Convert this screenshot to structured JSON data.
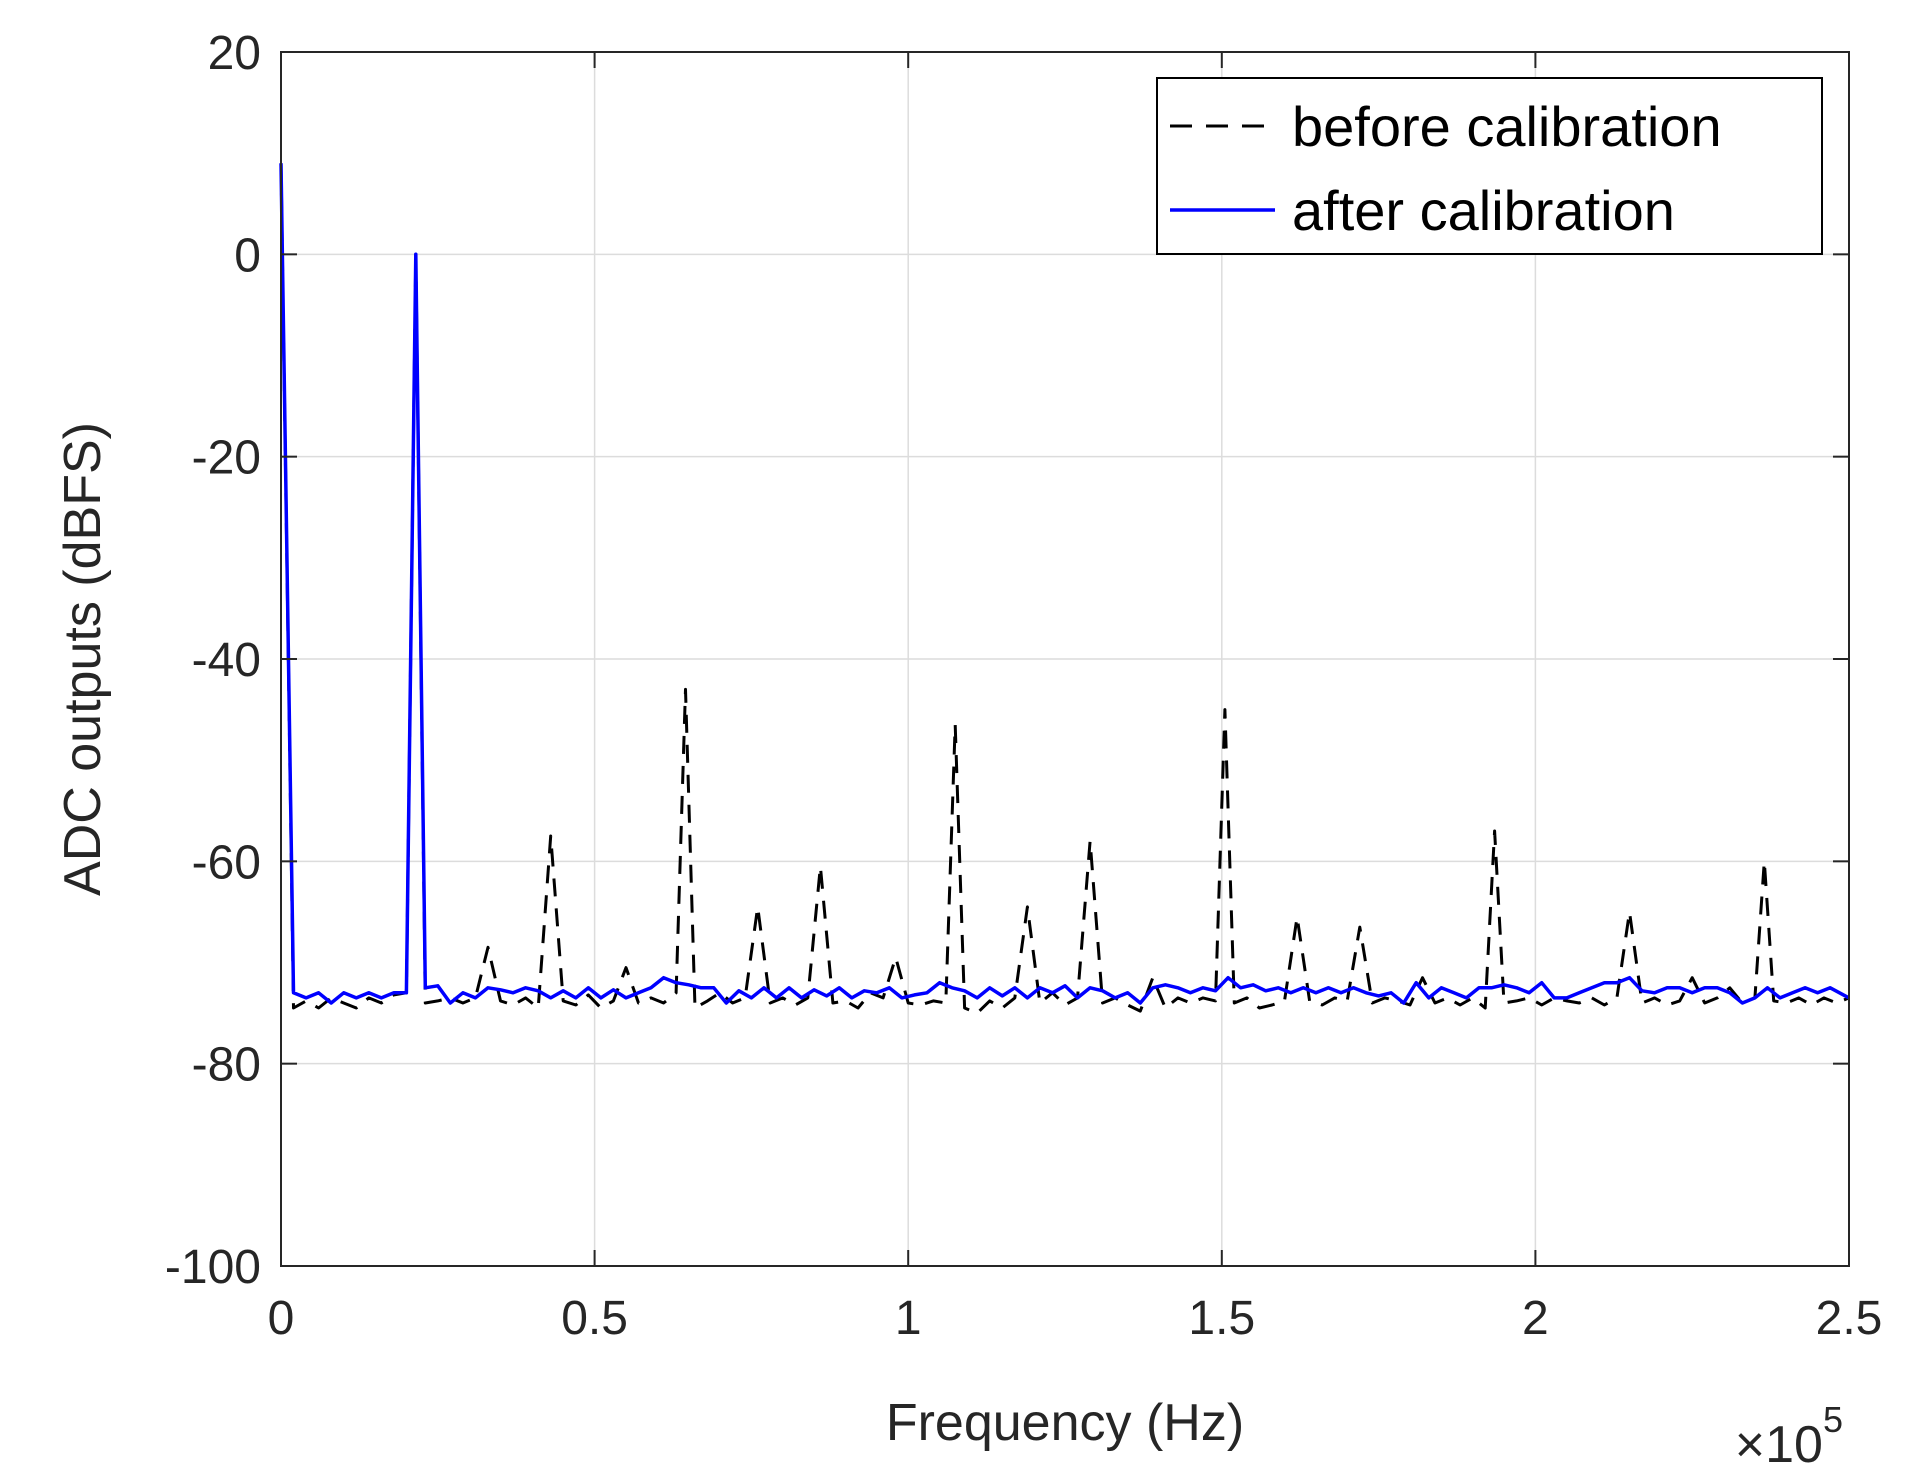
{
  "chart_data": {
    "type": "line",
    "xlabel": "Frequency (Hz)",
    "ylabel": "ADC outputs (dBFS)",
    "x_multiplier": "×10",
    "x_multiplier_exp": "5",
    "xlim": [
      0,
      250000
    ],
    "ylim": [
      -100,
      20
    ],
    "xticks": [
      0,
      50000,
      100000,
      150000,
      200000,
      250000
    ],
    "xtick_labels": [
      "0",
      "0.5",
      "1",
      "1.5",
      "2",
      "2.5"
    ],
    "yticks": [
      -100,
      -80,
      -60,
      -40,
      -20,
      0,
      20
    ],
    "ytick_labels": [
      "-100",
      "-80",
      "-60",
      "-40",
      "-20",
      "0",
      "20"
    ],
    "grid": true,
    "legend_position": "top-right",
    "series": [
      {
        "name": "before calibration",
        "style": "dashed",
        "color": "#000000",
        "points": [
          [
            0,
            9
          ],
          [
            2000,
            -74.5
          ],
          [
            4000,
            -73.8
          ],
          [
            6000,
            -74.5
          ],
          [
            8000,
            -73.5
          ],
          [
            10000,
            -74
          ],
          [
            12000,
            -74.5
          ],
          [
            14000,
            -73.5
          ],
          [
            16000,
            -74
          ],
          [
            18000,
            -73.2
          ],
          [
            20000,
            -73
          ],
          [
            21500,
            0
          ],
          [
            23000,
            -74
          ],
          [
            25000,
            -73.8
          ],
          [
            27000,
            -73.5
          ],
          [
            29000,
            -74
          ],
          [
            31000,
            -73.5
          ],
          [
            33000,
            -68.5
          ],
          [
            35000,
            -73.8
          ],
          [
            37000,
            -74.2
          ],
          [
            39000,
            -73.5
          ],
          [
            41000,
            -74.5
          ],
          [
            43000,
            -57.5
          ],
          [
            45000,
            -73.8
          ],
          [
            47000,
            -74.2
          ],
          [
            49000,
            -73.2
          ],
          [
            51000,
            -74.5
          ],
          [
            53000,
            -73.8
          ],
          [
            55000,
            -70.5
          ],
          [
            57000,
            -74
          ],
          [
            59000,
            -73.5
          ],
          [
            61000,
            -74
          ],
          [
            63000,
            -73
          ],
          [
            64500,
            -43
          ],
          [
            66000,
            -74.5
          ],
          [
            68000,
            -73.8
          ],
          [
            70000,
            -73
          ],
          [
            72000,
            -74
          ],
          [
            74000,
            -73.5
          ],
          [
            76000,
            -64.5
          ],
          [
            78000,
            -74
          ],
          [
            80000,
            -73.5
          ],
          [
            82000,
            -74.2
          ],
          [
            84000,
            -73.5
          ],
          [
            86000,
            -60.5
          ],
          [
            88000,
            -74
          ],
          [
            90000,
            -73.8
          ],
          [
            92000,
            -74.5
          ],
          [
            94000,
            -73
          ],
          [
            96000,
            -73.5
          ],
          [
            98000,
            -69.5
          ],
          [
            100000,
            -74
          ],
          [
            102000,
            -74.2
          ],
          [
            104000,
            -73.8
          ],
          [
            106000,
            -74
          ],
          [
            107500,
            -46.5
          ],
          [
            109000,
            -74.5
          ],
          [
            111000,
            -75
          ],
          [
            113000,
            -73.8
          ],
          [
            115000,
            -74.5
          ],
          [
            117000,
            -73.5
          ],
          [
            119000,
            -64.5
          ],
          [
            121000,
            -74
          ],
          [
            123000,
            -73
          ],
          [
            125000,
            -74.2
          ],
          [
            127000,
            -73.5
          ],
          [
            129000,
            -58
          ],
          [
            131000,
            -74
          ],
          [
            133000,
            -73.5
          ],
          [
            135000,
            -74.2
          ],
          [
            137000,
            -74.8
          ],
          [
            139000,
            -71.5
          ],
          [
            141000,
            -74.5
          ],
          [
            143000,
            -73.5
          ],
          [
            145000,
            -74
          ],
          [
            147000,
            -73.5
          ],
          [
            149000,
            -73.8
          ],
          [
            150500,
            -45
          ],
          [
            152000,
            -74
          ],
          [
            154000,
            -73.5
          ],
          [
            156000,
            -74.5
          ],
          [
            158000,
            -74.2
          ],
          [
            160000,
            -73.8
          ],
          [
            162000,
            -65.5
          ],
          [
            164000,
            -73.8
          ],
          [
            166000,
            -74.2
          ],
          [
            168000,
            -73.5
          ],
          [
            170000,
            -73.8
          ],
          [
            172000,
            -66.5
          ],
          [
            174000,
            -74
          ],
          [
            176000,
            -73.5
          ],
          [
            178000,
            -73.8
          ],
          [
            180000,
            -74.2
          ],
          [
            182000,
            -71.5
          ],
          [
            184000,
            -74
          ],
          [
            186000,
            -73.5
          ],
          [
            188000,
            -74.2
          ],
          [
            190000,
            -73.5
          ],
          [
            192000,
            -74.5
          ],
          [
            193500,
            -57
          ],
          [
            195000,
            -74
          ],
          [
            197000,
            -73.8
          ],
          [
            199000,
            -73.5
          ],
          [
            201000,
            -74.2
          ],
          [
            203000,
            -73.5
          ],
          [
            205000,
            -73.8
          ],
          [
            207000,
            -74
          ],
          [
            209000,
            -73.5
          ],
          [
            211000,
            -74.2
          ],
          [
            213000,
            -73.5
          ],
          [
            215000,
            -65
          ],
          [
            217000,
            -74
          ],
          [
            219000,
            -73.5
          ],
          [
            221000,
            -74.2
          ],
          [
            223000,
            -73.8
          ],
          [
            225000,
            -71.5
          ],
          [
            227000,
            -74
          ],
          [
            229000,
            -73.5
          ],
          [
            231000,
            -72.5
          ],
          [
            233000,
            -74
          ],
          [
            235000,
            -73.5
          ],
          [
            236500,
            -60
          ],
          [
            238000,
            -73.8
          ],
          [
            240000,
            -74
          ],
          [
            242000,
            -73.5
          ],
          [
            244000,
            -74.2
          ],
          [
            246000,
            -73.5
          ],
          [
            248000,
            -74
          ],
          [
            250000,
            -73.5
          ]
        ]
      },
      {
        "name": "after calibration",
        "style": "solid",
        "color": "#0000ff",
        "points": [
          [
            0,
            9
          ],
          [
            2000,
            -73
          ],
          [
            4000,
            -73.5
          ],
          [
            6000,
            -73
          ],
          [
            8000,
            -74
          ],
          [
            10000,
            -73
          ],
          [
            12000,
            -73.5
          ],
          [
            14000,
            -73
          ],
          [
            16000,
            -73.5
          ],
          [
            18000,
            -73
          ],
          [
            20000,
            -73
          ],
          [
            21500,
            0
          ],
          [
            23000,
            -72.5
          ],
          [
            25000,
            -72.3
          ],
          [
            27000,
            -74
          ],
          [
            29000,
            -73
          ],
          [
            31000,
            -73.5
          ],
          [
            33000,
            -72.5
          ],
          [
            35000,
            -72.7
          ],
          [
            37000,
            -73
          ],
          [
            39000,
            -72.5
          ],
          [
            41000,
            -72.8
          ],
          [
            43000,
            -73.5
          ],
          [
            45000,
            -72.8
          ],
          [
            47000,
            -73.5
          ],
          [
            49000,
            -72.5
          ],
          [
            51000,
            -73.5
          ],
          [
            53000,
            -72.7
          ],
          [
            55000,
            -73.5
          ],
          [
            57000,
            -73
          ],
          [
            59000,
            -72.5
          ],
          [
            61000,
            -71.5
          ],
          [
            63000,
            -72
          ],
          [
            65000,
            -72.2
          ],
          [
            67000,
            -72.5
          ],
          [
            69000,
            -72.5
          ],
          [
            71000,
            -74
          ],
          [
            73000,
            -72.8
          ],
          [
            75000,
            -73.5
          ],
          [
            77000,
            -72.5
          ],
          [
            79000,
            -73.5
          ],
          [
            81000,
            -72.5
          ],
          [
            83000,
            -73.5
          ],
          [
            85000,
            -72.7
          ],
          [
            87000,
            -73.3
          ],
          [
            89000,
            -72.5
          ],
          [
            91000,
            -73.5
          ],
          [
            93000,
            -72.8
          ],
          [
            95000,
            -73
          ],
          [
            97000,
            -72.5
          ],
          [
            99000,
            -73.5
          ],
          [
            101000,
            -73.2
          ],
          [
            103000,
            -73
          ],
          [
            105000,
            -72
          ],
          [
            107000,
            -72.5
          ],
          [
            109000,
            -72.8
          ],
          [
            111000,
            -73.5
          ],
          [
            113000,
            -72.5
          ],
          [
            115000,
            -73.3
          ],
          [
            117000,
            -72.5
          ],
          [
            119000,
            -73.5
          ],
          [
            121000,
            -72.5
          ],
          [
            123000,
            -73
          ],
          [
            125000,
            -72.3
          ],
          [
            127000,
            -73.5
          ],
          [
            129000,
            -72.5
          ],
          [
            131000,
            -72.8
          ],
          [
            133000,
            -73.5
          ],
          [
            135000,
            -73
          ],
          [
            137000,
            -74
          ],
          [
            139000,
            -72.5
          ],
          [
            141000,
            -72.2
          ],
          [
            143000,
            -72.5
          ],
          [
            145000,
            -73
          ],
          [
            147000,
            -72.5
          ],
          [
            149000,
            -72.8
          ],
          [
            151000,
            -71.5
          ],
          [
            153000,
            -72.5
          ],
          [
            155000,
            -72.2
          ],
          [
            157000,
            -72.8
          ],
          [
            159000,
            -72.5
          ],
          [
            161000,
            -73
          ],
          [
            163000,
            -72.5
          ],
          [
            165000,
            -73
          ],
          [
            167000,
            -72.5
          ],
          [
            169000,
            -73
          ],
          [
            171000,
            -72.5
          ],
          [
            173000,
            -73
          ],
          [
            175000,
            -73.3
          ],
          [
            177000,
            -73
          ],
          [
            179000,
            -74
          ],
          [
            181000,
            -72
          ],
          [
            183000,
            -73.5
          ],
          [
            185000,
            -72.5
          ],
          [
            187000,
            -73
          ],
          [
            189000,
            -73.5
          ],
          [
            191000,
            -72.5
          ],
          [
            193000,
            -72.5
          ],
          [
            195000,
            -72.2
          ],
          [
            197000,
            -72.5
          ],
          [
            199000,
            -73
          ],
          [
            201000,
            -72
          ],
          [
            203000,
            -73.5
          ],
          [
            205000,
            -73.5
          ],
          [
            207000,
            -73
          ],
          [
            209000,
            -72.5
          ],
          [
            211000,
            -72
          ],
          [
            213000,
            -72
          ],
          [
            215000,
            -71.5
          ],
          [
            217000,
            -72.8
          ],
          [
            219000,
            -73
          ],
          [
            221000,
            -72.5
          ],
          [
            223000,
            -72.5
          ],
          [
            225000,
            -73
          ],
          [
            227000,
            -72.5
          ],
          [
            229000,
            -72.5
          ],
          [
            231000,
            -73
          ],
          [
            233000,
            -74
          ],
          [
            235000,
            -73.5
          ],
          [
            237000,
            -72.5
          ],
          [
            239000,
            -73.5
          ],
          [
            241000,
            -73
          ],
          [
            243000,
            -72.5
          ],
          [
            245000,
            -73
          ],
          [
            247000,
            -72.5
          ],
          [
            250000,
            -73.5
          ]
        ]
      }
    ]
  }
}
